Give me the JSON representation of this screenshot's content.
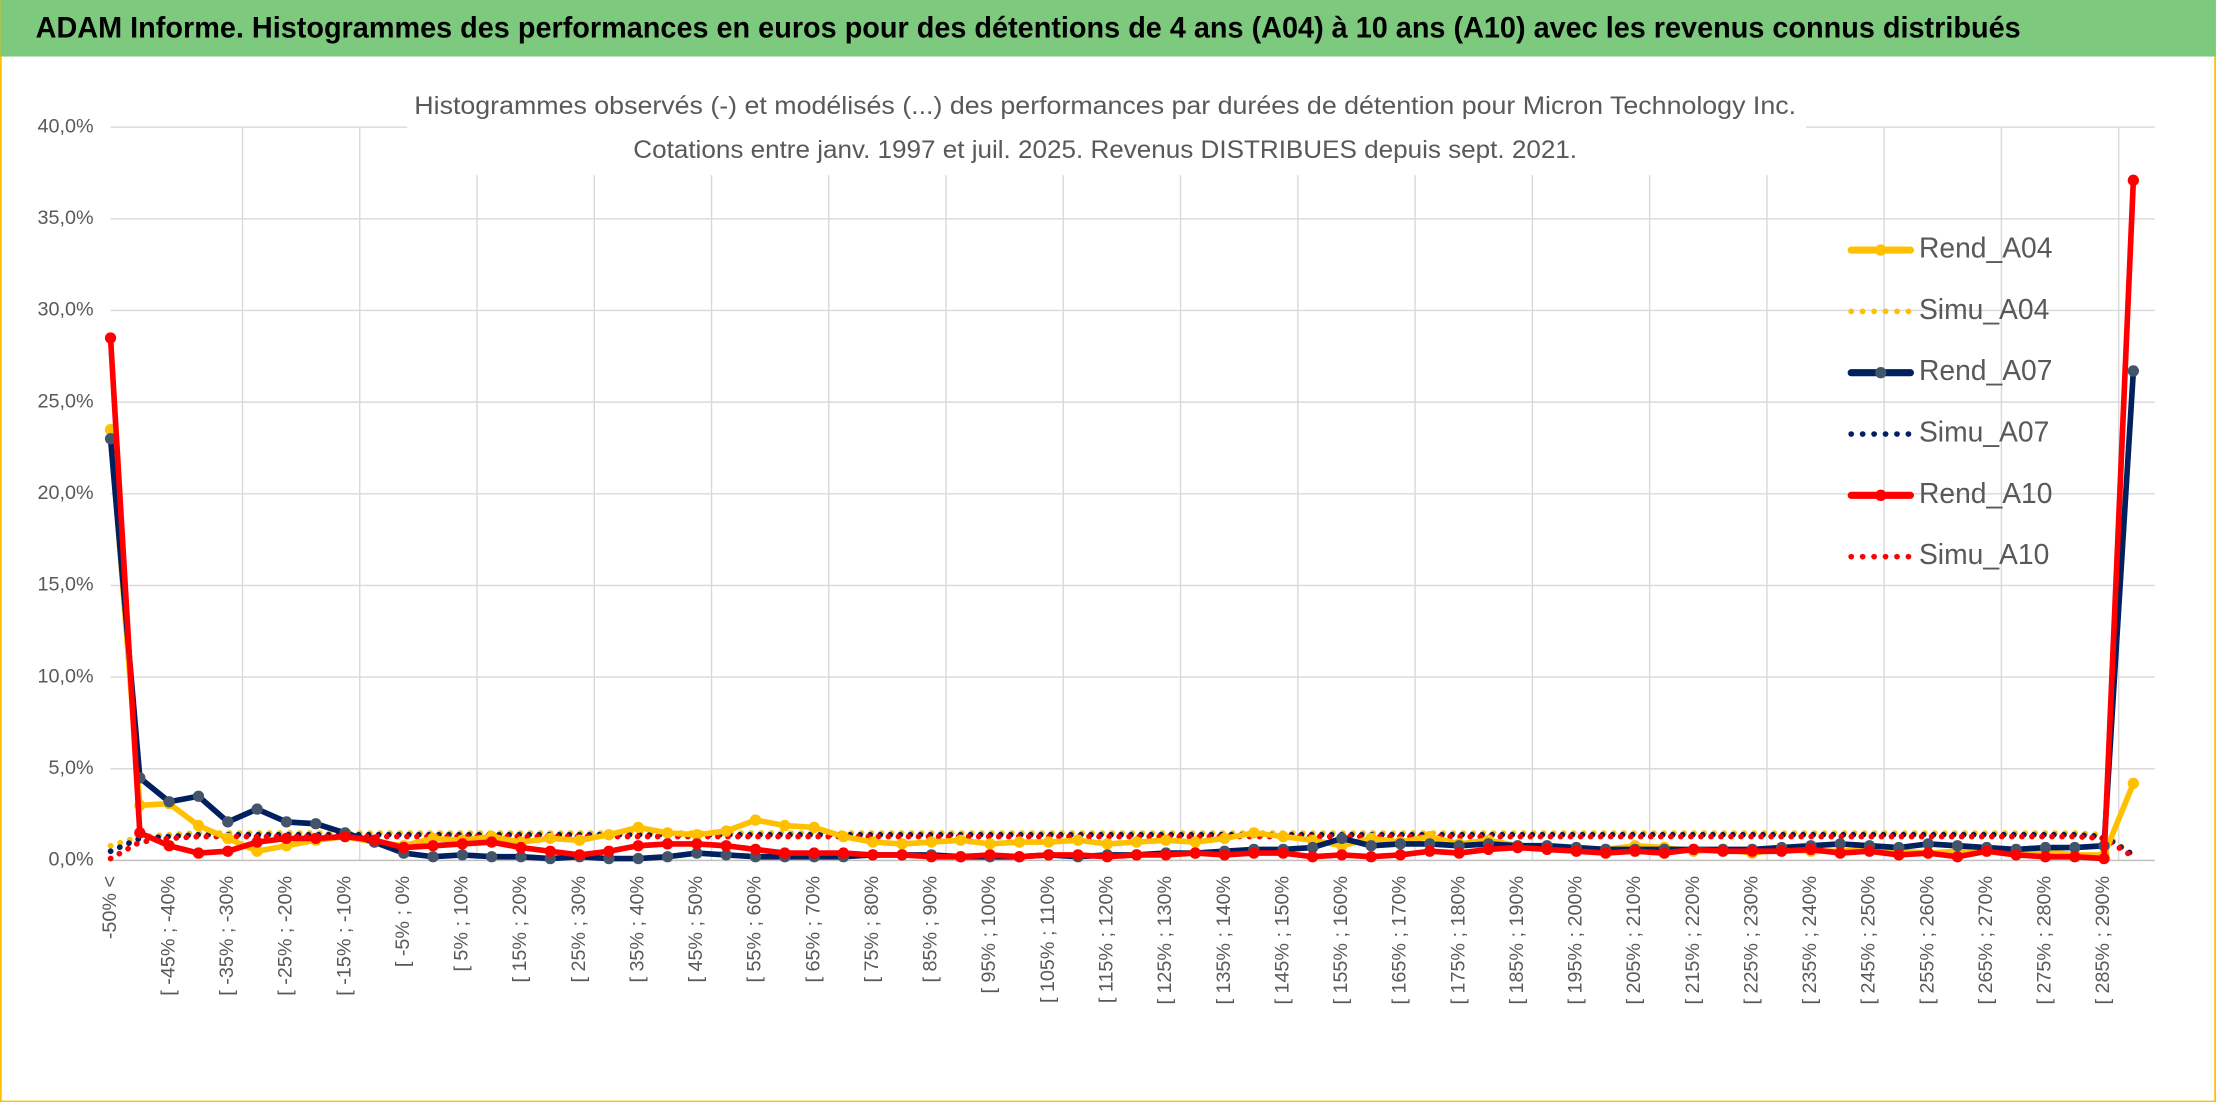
{
  "chart_data": {
    "type": "line",
    "header": "ADAM Informe. Histogrammes des performances en euros pour des détentions de 4 ans (A04) à 10 ans (A10) avec les revenus connus distribués",
    "title": "Histogrammes observés (-) et modélisés (...) des performances par durées de détention pour Micron Technology Inc.",
    "subtitle": "Cotations entre janv. 1997 et juil. 2025. Revenus DISTRIBUES depuis sept. 2021.",
    "categories": [
      "-50% <",
      null,
      "[ -45% ; -40%",
      null,
      "[ -35% ; -30%",
      null,
      "[ -25% ; -20%",
      null,
      "[ -15% ; -10%",
      null,
      "[ -5% ; 0%",
      null,
      "[ 5% ; 10%",
      null,
      "[ 15% ; 20%",
      null,
      "[ 25% ; 30%",
      null,
      "[ 35% ; 40%",
      null,
      "[ 45% ; 50%",
      null,
      "[ 55% ; 60%",
      null,
      "[ 65% ; 70%",
      null,
      "[ 75% ; 80%",
      null,
      "[ 85% ; 90%",
      null,
      "[ 95% ; 100%",
      null,
      "[ 105% ; 110%",
      null,
      "[ 115% ; 120%",
      null,
      "[ 125% ; 130%",
      null,
      "[ 135% ; 140%",
      null,
      "[ 145% ; 150%",
      null,
      "[ 155% ; 160%",
      null,
      "[ 165% ; 170%",
      null,
      "[ 175% ; 180%",
      null,
      "[ 185% ; 190%",
      null,
      "[ 195% ; 200%",
      null,
      "[ 205% ; 210%",
      null,
      "[ 215% ; 220%",
      null,
      "[ 225% ; 230%",
      null,
      "[ 235% ; 240%",
      null,
      "[ 245% ; 250%",
      null,
      "[ 255% ; 260%",
      null,
      "[ 265% ; 270%",
      null,
      "[ 275% ; 280%",
      null,
      "[ 285% ; 290%",
      null
    ],
    "series": [
      {
        "name": "Rend_A04",
        "color": "#ffc000",
        "style": "solid",
        "values": [
          23.5,
          3.0,
          3.1,
          1.9,
          1.2,
          0.5,
          0.8,
          1.1,
          1.3,
          1.0,
          0.8,
          1.2,
          1.1,
          1.3,
          1.0,
          1.2,
          1.1,
          1.4,
          1.8,
          1.5,
          1.4,
          1.6,
          2.2,
          1.9,
          1.8,
          1.3,
          1.0,
          0.9,
          1.0,
          1.1,
          0.9,
          1.0,
          1.0,
          1.1,
          0.9,
          1.0,
          1.1,
          1.0,
          1.2,
          1.5,
          1.3,
          1.1,
          0.8,
          1.2,
          1.0,
          1.3,
          0.9,
          1.1,
          0.8,
          0.6,
          0.7,
          0.6,
          0.8,
          0.7,
          0.5,
          0.6,
          0.4,
          0.6,
          0.5,
          0.5,
          0.6,
          0.5,
          0.4,
          0.5,
          0.6,
          0.4,
          0.5,
          0.3,
          0.3,
          4.2
        ]
      },
      {
        "name": "Simu_A04",
        "color": "#ffc000",
        "style": "dotted",
        "values": [
          0.8,
          1.3,
          1.4,
          1.5,
          1.5,
          1.5,
          1.5,
          1.5,
          1.5,
          1.5,
          1.5,
          1.5,
          1.5,
          1.5,
          1.5,
          1.5,
          1.5,
          1.5,
          1.5,
          1.5,
          1.5,
          1.5,
          1.5,
          1.5,
          1.5,
          1.5,
          1.5,
          1.5,
          1.5,
          1.5,
          1.5,
          1.5,
          1.5,
          1.5,
          1.5,
          1.5,
          1.5,
          1.5,
          1.5,
          1.5,
          1.5,
          1.5,
          1.5,
          1.5,
          1.5,
          1.5,
          1.5,
          1.5,
          1.5,
          1.5,
          1.5,
          1.5,
          1.5,
          1.5,
          1.5,
          1.5,
          1.5,
          1.5,
          1.5,
          1.5,
          1.5,
          1.5,
          1.5,
          1.5,
          1.5,
          1.5,
          1.5,
          1.5,
          1.4,
          0.3
        ]
      },
      {
        "name": "Rend_A07",
        "color": "#002060",
        "style": "solid",
        "values": [
          23.0,
          4.5,
          3.2,
          3.5,
          2.1,
          2.8,
          2.1,
          2.0,
          1.5,
          1.0,
          0.4,
          0.2,
          0.3,
          0.2,
          0.2,
          0.1,
          0.2,
          0.1,
          0.1,
          0.2,
          0.4,
          0.3,
          0.2,
          0.2,
          0.2,
          0.2,
          0.3,
          0.3,
          0.3,
          0.2,
          0.2,
          0.2,
          0.3,
          0.2,
          0.3,
          0.3,
          0.4,
          0.4,
          0.5,
          0.6,
          0.6,
          0.7,
          1.2,
          0.8,
          0.9,
          0.9,
          0.8,
          0.9,
          0.8,
          0.8,
          0.7,
          0.6,
          0.6,
          0.6,
          0.6,
          0.6,
          0.6,
          0.7,
          0.8,
          0.9,
          0.8,
          0.7,
          0.9,
          0.8,
          0.7,
          0.6,
          0.7,
          0.7,
          0.8,
          26.7
        ]
      },
      {
        "name": "Simu_A07",
        "color": "#002060",
        "style": "dotted",
        "values": [
          0.5,
          1.2,
          1.3,
          1.4,
          1.4,
          1.4,
          1.4,
          1.4,
          1.4,
          1.4,
          1.4,
          1.4,
          1.4,
          1.4,
          1.4,
          1.4,
          1.4,
          1.4,
          1.4,
          1.4,
          1.4,
          1.4,
          1.4,
          1.4,
          1.4,
          1.4,
          1.4,
          1.4,
          1.4,
          1.4,
          1.4,
          1.4,
          1.4,
          1.4,
          1.4,
          1.4,
          1.4,
          1.4,
          1.4,
          1.4,
          1.4,
          1.4,
          1.4,
          1.4,
          1.4,
          1.4,
          1.4,
          1.4,
          1.4,
          1.4,
          1.4,
          1.4,
          1.4,
          1.4,
          1.4,
          1.4,
          1.4,
          1.4,
          1.4,
          1.4,
          1.4,
          1.4,
          1.4,
          1.4,
          1.4,
          1.4,
          1.4,
          1.4,
          1.3,
          0.3
        ]
      },
      {
        "name": "Rend_A10",
        "color": "#ff0000",
        "style": "solid",
        "values": [
          28.5,
          1.5,
          0.8,
          0.4,
          0.5,
          1.0,
          1.2,
          1.2,
          1.3,
          1.1,
          0.7,
          0.8,
          0.9,
          1.0,
          0.7,
          0.5,
          0.3,
          0.5,
          0.8,
          0.9,
          0.9,
          0.8,
          0.6,
          0.4,
          0.4,
          0.4,
          0.3,
          0.3,
          0.2,
          0.2,
          0.3,
          0.2,
          0.3,
          0.3,
          0.2,
          0.3,
          0.3,
          0.4,
          0.3,
          0.4,
          0.4,
          0.2,
          0.3,
          0.2,
          0.3,
          0.5,
          0.4,
          0.6,
          0.7,
          0.6,
          0.5,
          0.4,
          0.5,
          0.4,
          0.6,
          0.5,
          0.5,
          0.5,
          0.6,
          0.4,
          0.5,
          0.3,
          0.4,
          0.2,
          0.5,
          0.3,
          0.2,
          0.2,
          0.1,
          37.1
        ]
      },
      {
        "name": "Simu_A10",
        "color": "#ff0000",
        "style": "dotted",
        "values": [
          0.1,
          1.0,
          1.2,
          1.3,
          1.3,
          1.3,
          1.3,
          1.3,
          1.3,
          1.3,
          1.3,
          1.3,
          1.3,
          1.3,
          1.3,
          1.3,
          1.3,
          1.3,
          1.3,
          1.3,
          1.3,
          1.3,
          1.3,
          1.3,
          1.3,
          1.3,
          1.3,
          1.3,
          1.3,
          1.3,
          1.3,
          1.3,
          1.3,
          1.3,
          1.3,
          1.3,
          1.3,
          1.3,
          1.3,
          1.3,
          1.3,
          1.3,
          1.3,
          1.3,
          1.3,
          1.3,
          1.3,
          1.3,
          1.3,
          1.3,
          1.3,
          1.3,
          1.3,
          1.3,
          1.3,
          1.3,
          1.3,
          1.3,
          1.3,
          1.3,
          1.3,
          1.3,
          1.3,
          1.3,
          1.3,
          1.3,
          1.3,
          1.3,
          1.2,
          0.2
        ]
      }
    ],
    "ylim": [
      0,
      40
    ],
    "yticks": [
      {
        "value": 0,
        "label": "0,0%"
      },
      {
        "value": 5,
        "label": "5,0%"
      },
      {
        "value": 10,
        "label": "10,0%"
      },
      {
        "value": 15,
        "label": "15,0%"
      },
      {
        "value": 20,
        "label": "20,0%"
      },
      {
        "value": 25,
        "label": "25,0%"
      },
      {
        "value": 30,
        "label": "30,0%"
      },
      {
        "value": 35,
        "label": "35,0%"
      },
      {
        "value": 40,
        "label": "40,0%"
      }
    ],
    "grid": true,
    "legend": "right"
  }
}
